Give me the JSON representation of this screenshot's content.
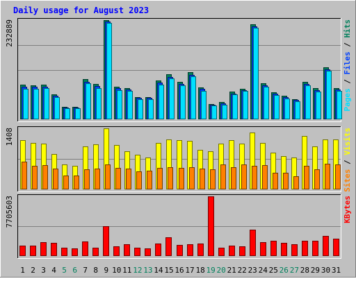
{
  "chart_data": {
    "type": "bar",
    "title": "Daily usage for August 2023",
    "categories": [
      "1",
      "2",
      "3",
      "4",
      "5",
      "6",
      "7",
      "8",
      "9",
      "10",
      "11",
      "12",
      "13",
      "14",
      "15",
      "16",
      "17",
      "18",
      "19",
      "20",
      "21",
      "22",
      "23",
      "24",
      "25",
      "26",
      "27",
      "28",
      "29",
      "30",
      "31"
    ],
    "weekend_days": [
      "5",
      "6",
      "12",
      "13",
      "19",
      "20",
      "26",
      "27"
    ],
    "legend": {
      "hits": "Hits",
      "files": "Files",
      "pages": "Pages",
      "visits": "Visits",
      "sites": "Sites",
      "kbytes": "KBytes",
      "separator": " / "
    },
    "panels": [
      {
        "name": "hits-files-pages",
        "ymax_label": "232889",
        "ylim": [
          0,
          232889
        ],
        "series": [
          {
            "name": "Hits",
            "color": "#00805c",
            "values": [
              81500,
              80000,
              81500,
              58000,
              30000,
              30000,
              94000,
              82500,
              232889,
              76000,
              73000,
              52000,
              52000,
              92000,
              106000,
              88000,
              111000,
              75000,
              36000,
              40000,
              65000,
              72000,
              223000,
              84000,
              63000,
              55000,
              48000,
              88000,
              73000,
              122000,
              73000
            ]
          },
          {
            "name": "Files",
            "color": "#0040ff",
            "values": [
              76000,
              76000,
              77000,
              55000,
              28000,
              28000,
              88000,
              78000,
              230000,
              73000,
              70000,
              50000,
              50000,
              86000,
              100000,
              83000,
              105000,
              71000,
              34000,
              37000,
              61000,
              69000,
              219000,
              80000,
              60000,
              52000,
              46000,
              83000,
              69000,
              118000,
              70000
            ]
          },
          {
            "name": "Pages",
            "color": "#00e0ff",
            "values": [
              72000,
              72000,
              73000,
              52000,
              26000,
              26000,
              84000,
              74000,
              226000,
              69000,
              66000,
              47000,
              47000,
              82000,
              96000,
              79000,
              101000,
              67000,
              32000,
              35000,
              58000,
              66000,
              215000,
              76000,
              57000,
              49000,
              43000,
              79000,
              65000,
              114000,
              66000
            ]
          }
        ]
      },
      {
        "name": "visits-sites",
        "ymax_label": "1408",
        "ylim": [
          0,
          1408
        ],
        "series": [
          {
            "name": "Visits",
            "color": "#ffff00",
            "values": [
              1140,
              1080,
              1060,
              820,
              580,
              540,
              1000,
              1040,
              1408,
              1020,
              880,
              800,
              730,
              1080,
              1160,
              1140,
              1120,
              920,
              880,
              1060,
              1140,
              1060,
              1320,
              1080,
              850,
              770,
              740,
              1240,
              1000,
              1160,
              1160
            ]
          },
          {
            "name": "Sites",
            "color": "#ff8000",
            "values": [
              640,
              540,
              560,
              480,
              320,
              320,
              470,
              480,
              570,
              500,
              480,
              420,
              430,
              500,
              520,
              500,
              510,
              480,
              470,
              570,
              520,
              580,
              540,
              560,
              390,
              380,
              310,
              540,
              470,
              600,
              580
            ]
          }
        ]
      },
      {
        "name": "kbytes",
        "ymax_label": "7705603",
        "ylim": [
          0,
          7705603
        ],
        "series": [
          {
            "name": "KBytes",
            "color": "#ff0000",
            "values": [
              1320000,
              1320000,
              1780000,
              1660000,
              1080000,
              1000000,
              1840000,
              1080000,
              3860000,
              1280000,
              1520000,
              1040000,
              1000000,
              1640000,
              2400000,
              1420000,
              1560000,
              1640000,
              7705603,
              1080000,
              1380000,
              1240000,
              3420000,
              1780000,
              1980000,
              1740000,
              1540000,
              1960000,
              1940000,
              2570000,
              2280000
            ]
          }
        ]
      }
    ]
  }
}
